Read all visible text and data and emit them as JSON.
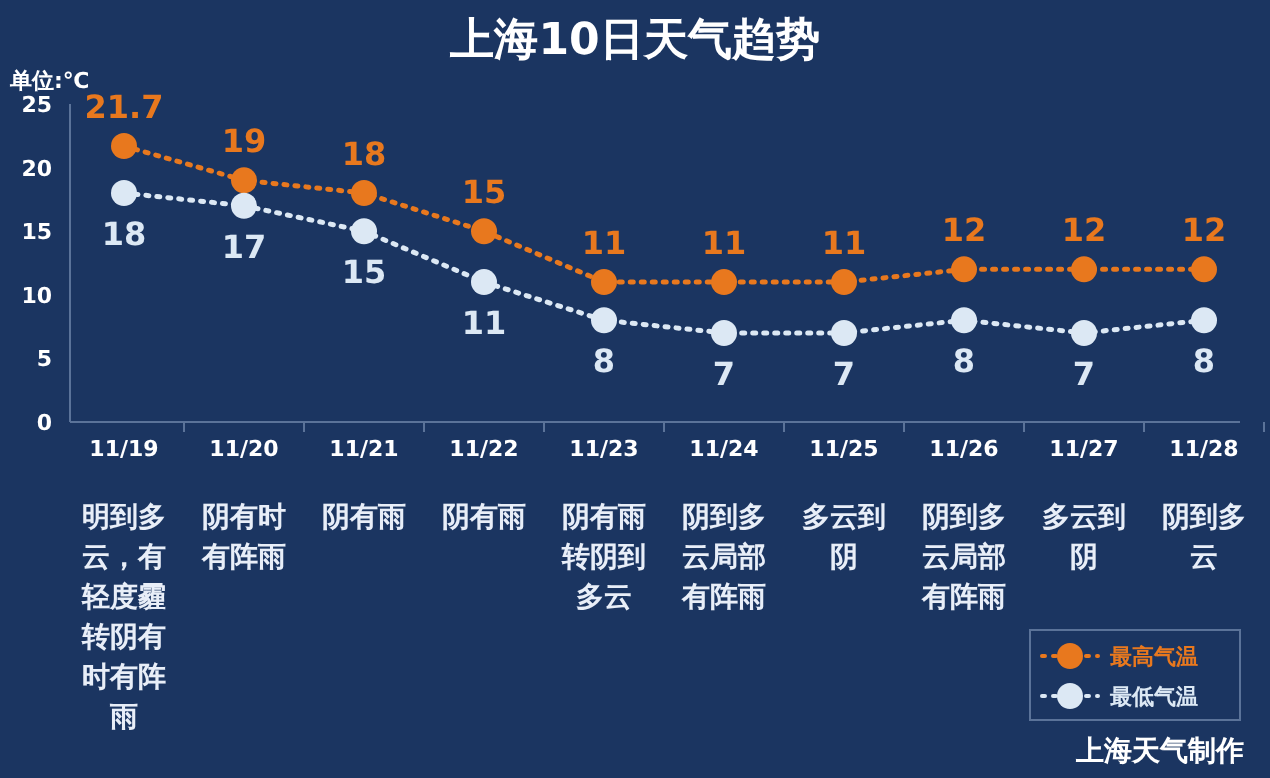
{
  "chart_data": {
    "type": "line",
    "title": "上海10日天气趋势",
    "ylabel": "单位:℃",
    "categories": [
      "11/19",
      "11/20",
      "11/21",
      "11/22",
      "11/23",
      "11/24",
      "11/25",
      "11/26",
      "11/27",
      "11/28"
    ],
    "series": [
      {
        "name": "最高气温",
        "color": "#e8781e",
        "values": [
          21.7,
          19,
          18,
          15,
          11,
          11,
          11,
          12,
          12,
          12
        ]
      },
      {
        "name": "最低气温",
        "color": "#dce8f4",
        "values": [
          18,
          17,
          15,
          11,
          8,
          7,
          7,
          8,
          7,
          8
        ]
      }
    ],
    "ylim": [
      0,
      25
    ],
    "yticks": [
      0,
      5,
      10,
      15,
      20,
      25
    ],
    "data_labels": true,
    "marker": "circle",
    "line_style": "dotted",
    "legend": "bottom right",
    "grid": false,
    "annotations": [
      "明到多云，有轻度霾转阴有时有阵雨",
      "阴有时有阵雨",
      "阴有雨",
      "阴有雨",
      "阴有雨转阴到多云",
      "阴到多云局部有阵雨",
      "多云到阴",
      "阴到多云局部有阵雨",
      "多云到阴",
      "阴到多云",
      "上海天气制作"
    ]
  }
}
